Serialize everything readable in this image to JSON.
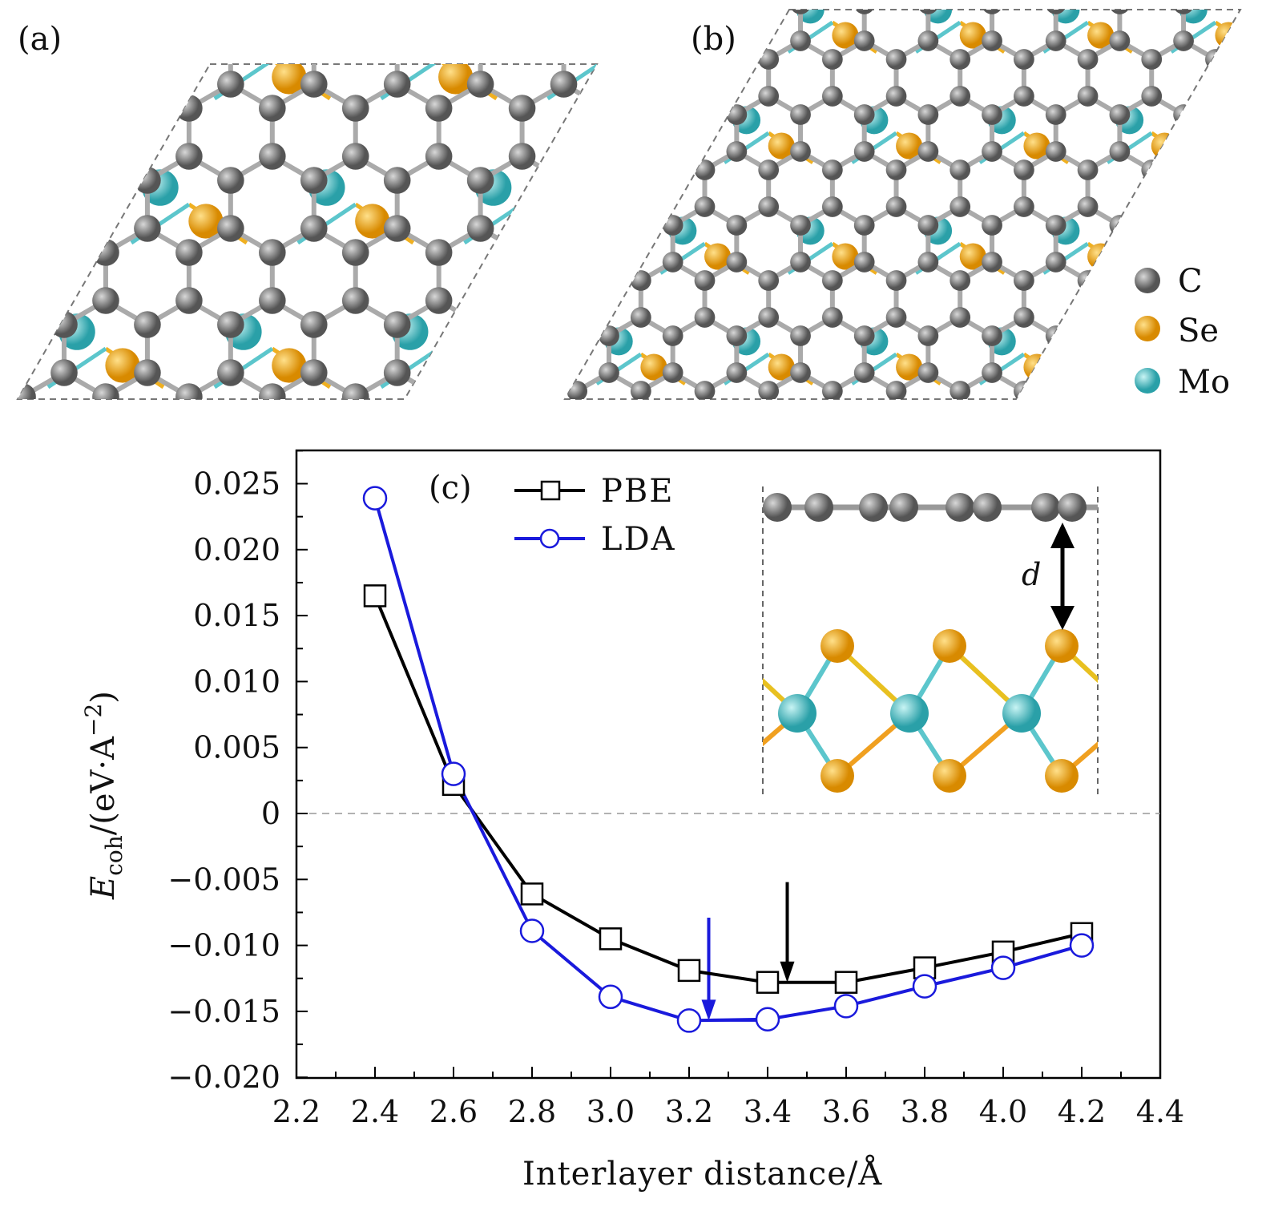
{
  "panels": {
    "a_label": "(a)",
    "b_label": "(b)",
    "c_label": "(c)"
  },
  "atom_legend": [
    {
      "label": "C",
      "color": "#808080"
    },
    {
      "label": "Se",
      "color": "#f0a818"
    },
    {
      "label": "Mo",
      "color": "#5cc6cc"
    }
  ],
  "inset": {
    "distance_label": "d"
  },
  "chart_data": {
    "type": "line",
    "title": "",
    "xlabel": "Interlayer distance/Å",
    "ylabel_main": "E",
    "ylabel_sub": "coh",
    "ylabel_rest": "/(eV·A",
    "ylabel_sup": "−2",
    "ylabel_close": ")",
    "xlim": [
      2.2,
      4.4
    ],
    "ylim": [
      -0.02,
      0.027
    ],
    "xticks": [
      2.2,
      2.4,
      2.6,
      2.8,
      3.0,
      3.2,
      3.4,
      3.6,
      3.8,
      4.0,
      4.2,
      4.4
    ],
    "xtick_labels": [
      "2.2",
      "2.4",
      "2.6",
      "2.8",
      "3.0",
      "3.2",
      "3.4",
      "3.6",
      "3.8",
      "4.0",
      "4.2",
      "4.4"
    ],
    "yticks": [
      -0.02,
      -0.015,
      -0.01,
      -0.005,
      0,
      0.005,
      0.01,
      0.015,
      0.02,
      0.025
    ],
    "ytick_labels": [
      "−0.020",
      "−0.015",
      "−0.010",
      "−0.005",
      "0",
      "0.005",
      "0.010",
      "0.015",
      "0.020",
      "0.025"
    ],
    "legend_position": "top-left",
    "x": [
      2.4,
      2.6,
      2.8,
      3.0,
      3.2,
      3.4,
      3.6,
      3.8,
      4.0,
      4.2
    ],
    "series": [
      {
        "name": "PBE",
        "color": "#000000",
        "marker": "square",
        "values": [
          0.0165,
          0.0022,
          -0.0061,
          -0.0095,
          -0.0119,
          -0.0128,
          -0.0128,
          -0.0117,
          -0.0105,
          -0.0091
        ]
      },
      {
        "name": "LDA",
        "color": "#1a1adc",
        "marker": "circle",
        "values": [
          0.0239,
          0.003,
          -0.0089,
          -0.0139,
          -0.0157,
          -0.0156,
          -0.0146,
          -0.0131,
          -0.0117,
          -0.01
        ]
      }
    ],
    "annotations": [
      {
        "type": "arrow",
        "color": "#1a1adc",
        "x": 3.25,
        "y_from": -0.0079,
        "y_to": -0.0157,
        "min_line": [
          3.2,
          3.4
        ]
      },
      {
        "type": "arrow",
        "color": "#000000",
        "x": 3.45,
        "y_from": -0.0052,
        "y_to": -0.0128,
        "min_line": [
          3.4,
          3.6
        ]
      }
    ],
    "zero_line": true
  }
}
